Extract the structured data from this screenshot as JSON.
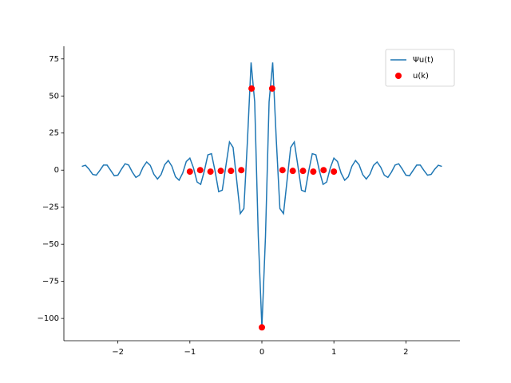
{
  "chart_data": {
    "type": "line",
    "xlim": [
      -2.75,
      2.75
    ],
    "ylim": [
      -115,
      83.5
    ],
    "xticks": [
      {
        "value": -2,
        "label": "−2"
      },
      {
        "value": -1,
        "label": "−1"
      },
      0,
      1,
      2
    ],
    "yticks": [
      {
        "value": -100,
        "label": "−100"
      },
      {
        "value": -75,
        "label": "−75"
      },
      {
        "value": -50,
        "label": "−50"
      },
      {
        "value": -25,
        "label": "−25"
      },
      0,
      25,
      50,
      75
    ],
    "legend": "upper right",
    "series": [
      {
        "name": "Ψu(t)",
        "type": "line",
        "color": "#1f77b4",
        "x": [
          -2.5,
          -2.45,
          -2.4,
          -2.35,
          -2.3,
          -2.25,
          -2.2,
          -2.15,
          -2.1,
          -2.05,
          -2,
          -1.95,
          -1.9,
          -1.85,
          -1.8,
          -1.75,
          -1.7,
          -1.65,
          -1.6,
          -1.55,
          -1.5,
          -1.45,
          -1.4,
          -1.35,
          -1.3,
          -1.25,
          -1.2,
          -1.15,
          -1.1,
          -1.05,
          -1,
          -0.95,
          -0.9,
          -0.85,
          -0.8,
          -0.75,
          -0.7,
          -0.65,
          -0.6,
          -0.55,
          -0.5,
          -0.45,
          -0.4,
          -0.35,
          -0.3,
          -0.25,
          -0.2,
          -0.15,
          -0.1,
          -0.05,
          0,
          0.05,
          0.1,
          0.15,
          0.2,
          0.25,
          0.3,
          0.35,
          0.4,
          0.45,
          0.5,
          0.55,
          0.6,
          0.65,
          0.7,
          0.75,
          0.8,
          0.85,
          0.9,
          0.95,
          1,
          1.05,
          1.1,
          1.15,
          1.2,
          1.25,
          1.3,
          1.35,
          1.4,
          1.45,
          1.5,
          1.55,
          1.6,
          1.65,
          1.7,
          1.75,
          1.8,
          1.85,
          1.9,
          1.95,
          2,
          2.05,
          2.1,
          2.15,
          2.2,
          2.25,
          2.3,
          2.35,
          2.4,
          2.45,
          2.5
        ],
        "values": [
          2.5,
          3.3,
          0.6,
          -2.9,
          -3.4,
          -0.2,
          3.4,
          3.4,
          -0.2,
          -3.8,
          -3.4,
          0.7,
          4.3,
          3.4,
          -1.3,
          -4.9,
          -3.4,
          2,
          5.5,
          3.2,
          -2.8,
          -6,
          -3,
          3.6,
          6.5,
          2.6,
          -4.5,
          -6.8,
          -2,
          5.8,
          8.1,
          1.5,
          -8,
          -9.6,
          -0.7,
          10.3,
          11.1,
          -0.7,
          -14.5,
          -13.5,
          2.9,
          19,
          15.3,
          -6.8,
          -29.3,
          -25.9,
          20.4,
          72.6,
          46,
          -44.6,
          -106,
          -44.6,
          46,
          72.6,
          20.4,
          -25.9,
          -29.3,
          -6.8,
          15.3,
          19,
          2.9,
          -13.5,
          -14.5,
          -0.7,
          11.1,
          10.3,
          -0.7,
          -9.6,
          -8,
          1.5,
          8.1,
          5.8,
          -2,
          -6.8,
          -4.5,
          2.6,
          6.5,
          3.6,
          -3,
          -6,
          -2.8,
          3.2,
          5.5,
          2,
          -3.4,
          -4.9,
          -1.3,
          3.4,
          4.3,
          0.7,
          -3.4,
          -3.8,
          -0.2,
          3.4,
          3.4,
          -0.2,
          -3.4,
          -2.9,
          0.6,
          3.3,
          2.5
        ]
      },
      {
        "name": "u(k)",
        "type": "scatter",
        "color": "#ff0000",
        "x": [
          -1,
          -0.857,
          -0.714,
          -0.571,
          -0.429,
          -0.286,
          -0.143,
          0,
          0.143,
          0.286,
          0.429,
          0.571,
          0.714,
          0.857,
          1
        ],
        "values": [
          -1,
          0,
          -1,
          -0.5,
          -0.5,
          0,
          55,
          -106,
          55,
          0,
          -0.5,
          -0.5,
          -1,
          0,
          -1
        ]
      }
    ]
  }
}
